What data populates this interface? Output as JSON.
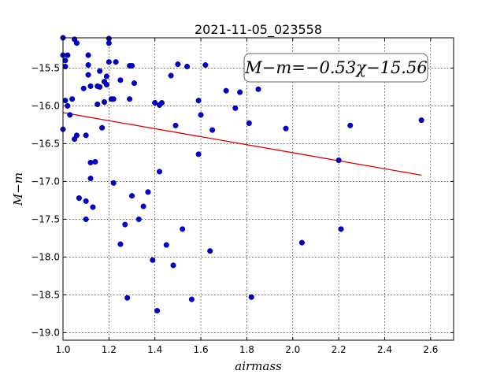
{
  "chart_data": {
    "type": "scatter",
    "title": "2021-11-05_023558",
    "xlabel": "airmass",
    "ylabel": "M−m",
    "xlim": [
      1.0,
      2.7
    ],
    "ylim": [
      -19.1,
      -15.1
    ],
    "y_inverted": false,
    "grid": true,
    "x_ticks": [
      "1.0",
      "1.2",
      "1.4",
      "1.6",
      "1.8",
      "2.0",
      "2.2",
      "2.4",
      "2.6"
    ],
    "y_ticks": [
      "−15.5",
      "−16.0",
      "−16.5",
      "−17.0",
      "−17.5",
      "−18.0",
      "−18.5",
      "−19.0"
    ],
    "annotation": "M−m=−0.53χ−15.56",
    "marker_color": "#0000cc",
    "fit_color": "#dd0000",
    "fit_line": {
      "slope": -0.53,
      "intercept": -15.56,
      "x_range": [
        1.0,
        2.56
      ]
    },
    "points": [
      [
        1.0,
        -15.1
      ],
      [
        1.0,
        -15.33
      ],
      [
        1.0,
        -16.31
      ],
      [
        1.01,
        -15.4
      ],
      [
        1.01,
        -15.48
      ],
      [
        1.01,
        -15.93
      ],
      [
        1.02,
        -15.33
      ],
      [
        1.02,
        -16.0
      ],
      [
        1.03,
        -16.12
      ],
      [
        1.04,
        -15.91
      ],
      [
        1.05,
        -15.12
      ],
      [
        1.05,
        -16.44
      ],
      [
        1.06,
        -15.17
      ],
      [
        1.06,
        -16.39
      ],
      [
        1.07,
        -17.22
      ],
      [
        1.09,
        -15.77
      ],
      [
        1.1,
        -16.39
      ],
      [
        1.1,
        -17.26
      ],
      [
        1.1,
        -17.5
      ],
      [
        1.11,
        -15.33
      ],
      [
        1.11,
        -15.46
      ],
      [
        1.11,
        -15.59
      ],
      [
        1.12,
        -15.74
      ],
      [
        1.12,
        -16.75
      ],
      [
        1.12,
        -16.96
      ],
      [
        1.13,
        -17.34
      ],
      [
        1.14,
        -16.74
      ],
      [
        1.15,
        -15.74
      ],
      [
        1.15,
        -15.98
      ],
      [
        1.16,
        -15.75
      ],
      [
        1.16,
        -15.54
      ],
      [
        1.17,
        -16.29
      ],
      [
        1.18,
        -15.68
      ],
      [
        1.18,
        -15.95
      ],
      [
        1.19,
        -15.61
      ],
      [
        1.19,
        -15.72
      ],
      [
        1.2,
        -15.42
      ],
      [
        1.2,
        -15.17
      ],
      [
        1.2,
        -15.11
      ],
      [
        1.21,
        -15.91
      ],
      [
        1.22,
        -15.91
      ],
      [
        1.22,
        -17.02
      ],
      [
        1.23,
        -15.42
      ],
      [
        1.25,
        -15.66
      ],
      [
        1.25,
        -17.83
      ],
      [
        1.27,
        -17.57
      ],
      [
        1.28,
        -18.54
      ],
      [
        1.29,
        -15.91
      ],
      [
        1.29,
        -15.47
      ],
      [
        1.3,
        -15.47
      ],
      [
        1.3,
        -17.19
      ],
      [
        1.31,
        -15.7
      ],
      [
        1.33,
        -17.5
      ],
      [
        1.35,
        -17.33
      ],
      [
        1.37,
        -17.14
      ],
      [
        1.39,
        -18.04
      ],
      [
        1.4,
        -15.96
      ],
      [
        1.41,
        -18.71
      ],
      [
        1.42,
        -15.99
      ],
      [
        1.42,
        -16.87
      ],
      [
        1.43,
        -15.96
      ],
      [
        1.45,
        -17.84
      ],
      [
        1.47,
        -15.6
      ],
      [
        1.48,
        -18.11
      ],
      [
        1.49,
        -16.26
      ],
      [
        1.5,
        -15.45
      ],
      [
        1.52,
        -17.63
      ],
      [
        1.54,
        -15.48
      ],
      [
        1.56,
        -18.56
      ],
      [
        1.59,
        -15.93
      ],
      [
        1.59,
        -16.64
      ],
      [
        1.6,
        -16.12
      ],
      [
        1.62,
        -15.46
      ],
      [
        1.64,
        -17.92
      ],
      [
        1.65,
        -16.32
      ],
      [
        1.71,
        -15.8
      ],
      [
        1.75,
        -16.03
      ],
      [
        1.77,
        -15.82
      ],
      [
        1.81,
        -16.23
      ],
      [
        1.82,
        -18.53
      ],
      [
        1.85,
        -15.78
      ],
      [
        1.97,
        -16.3
      ],
      [
        2.04,
        -17.81
      ],
      [
        2.2,
        -16.72
      ],
      [
        2.21,
        -17.63
      ],
      [
        2.25,
        -16.26
      ],
      [
        2.56,
        -16.19
      ]
    ]
  }
}
